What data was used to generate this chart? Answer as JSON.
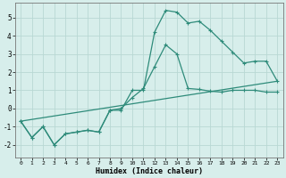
{
  "title": "",
  "xlabel": "Humidex (Indice chaleur)",
  "background_color": "#d7eeeb",
  "grid_color": "#b8d8d4",
  "line_color": "#2e8b7a",
  "xlim": [
    -0.5,
    23.5
  ],
  "ylim": [
    -2.7,
    5.8
  ],
  "yticks": [
    -2,
    -1,
    0,
    1,
    2,
    3,
    4,
    5
  ],
  "xticks": [
    0,
    1,
    2,
    3,
    4,
    5,
    6,
    7,
    8,
    9,
    10,
    11,
    12,
    13,
    14,
    15,
    16,
    17,
    18,
    19,
    20,
    21,
    22,
    23
  ],
  "line1_x": [
    0,
    1,
    2,
    3,
    4,
    5,
    6,
    7,
    8,
    9,
    10,
    11,
    12,
    13,
    14,
    15,
    16,
    17,
    18,
    19,
    20,
    21,
    22,
    23
  ],
  "line1_y": [
    -0.7,
    -1.6,
    -1.0,
    -2.0,
    -1.4,
    -1.3,
    -1.2,
    -1.3,
    -0.1,
    -0.1,
    1.0,
    1.0,
    4.2,
    5.4,
    5.3,
    4.7,
    4.8,
    4.3,
    3.7,
    3.1,
    2.5,
    2.6,
    2.6,
    1.5
  ],
  "line2_x": [
    0,
    1,
    2,
    3,
    4,
    5,
    6,
    7,
    8,
    9,
    10,
    11,
    12,
    13,
    14,
    15,
    16,
    17,
    18,
    19,
    20,
    21,
    22,
    23
  ],
  "line2_y": [
    -0.7,
    -1.6,
    -1.0,
    -2.0,
    -1.4,
    -1.3,
    -1.2,
    -1.3,
    -0.1,
    0.0,
    0.6,
    1.1,
    2.3,
    3.5,
    3.0,
    1.1,
    1.05,
    0.95,
    0.9,
    1.0,
    1.0,
    1.0,
    0.9,
    0.9
  ],
  "line3_x": [
    0,
    23
  ],
  "line3_y": [
    -0.7,
    1.5
  ]
}
